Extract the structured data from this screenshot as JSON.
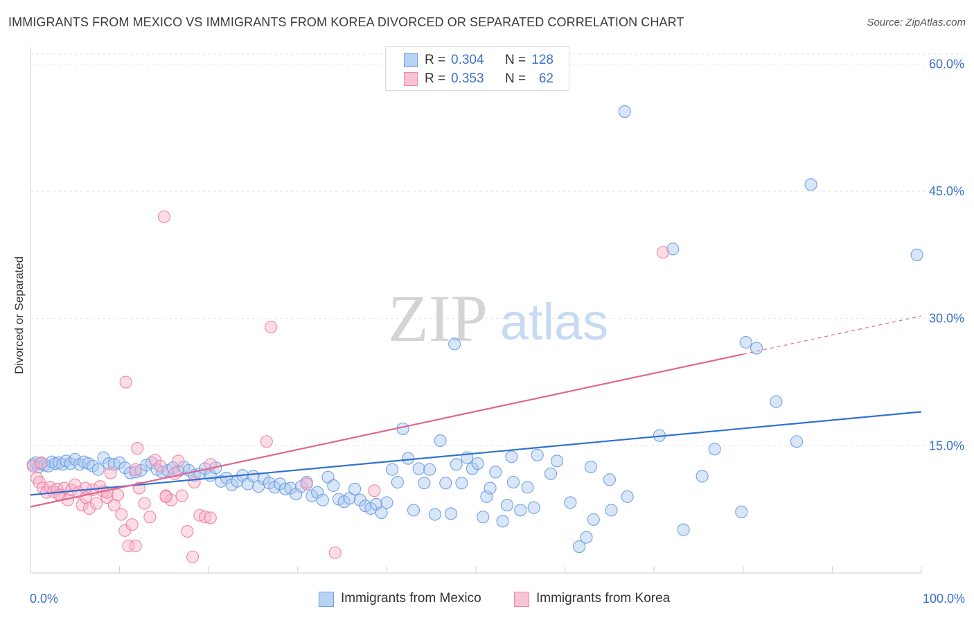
{
  "title": "IMMIGRANTS FROM MEXICO VS IMMIGRANTS FROM KOREA DIVORCED OR SEPARATED CORRELATION CHART",
  "source": "Source: ZipAtlas.com",
  "watermark": {
    "zip": "ZIP",
    "atlas": "atlas"
  },
  "legend_top": [
    {
      "r_label": "R =",
      "r_value": "0.304",
      "n_label": "N =",
      "n_value": "128",
      "color": "#6fa1e6"
    },
    {
      "r_label": "R =",
      "r_value": "0.353",
      "n_label": "N =",
      "n_value": "62",
      "color": "#ef86a6"
    }
  ],
  "legend_bottom": [
    {
      "label": "Immigrants from Mexico",
      "color": "#6fa1e6"
    },
    {
      "label": "Immigrants from Korea",
      "color": "#ef86a6"
    }
  ],
  "chart_data": {
    "type": "scatter",
    "ylabel": "Divorced or Separated",
    "xlabel": "",
    "xlim": [
      0,
      100
    ],
    "ylim": [
      0,
      62
    ],
    "x_tick_labels": [
      "0.0%",
      "100.0%"
    ],
    "y_ticks": [
      15,
      30,
      45,
      60
    ],
    "y_tick_labels": [
      "15.0%",
      "30.0%",
      "45.0%",
      "60.0%"
    ],
    "grid": "horizontal dashed",
    "series": [
      {
        "name": "Immigrants from Mexico",
        "color": "#6fa1e6",
        "trend": {
          "x": [
            0,
            100
          ],
          "y": [
            9.2,
            19.0
          ],
          "dashed_from": null
        },
        "points": [
          [
            0.3,
            12.8
          ],
          [
            0.6,
            13.0
          ],
          [
            0.9,
            12.5
          ],
          [
            1.2,
            12.9
          ],
          [
            1.6,
            12.7
          ],
          [
            2.0,
            12.6
          ],
          [
            2.4,
            13.1
          ],
          [
            2.8,
            12.9
          ],
          [
            3.2,
            13.0
          ],
          [
            3.6,
            12.8
          ],
          [
            4.0,
            13.2
          ],
          [
            4.5,
            12.9
          ],
          [
            5.0,
            13.4
          ],
          [
            5.5,
            12.8
          ],
          [
            6.0,
            13.1
          ],
          [
            6.5,
            12.9
          ],
          [
            7.0,
            12.6
          ],
          [
            7.6,
            12.2
          ],
          [
            8.2,
            13.6
          ],
          [
            8.8,
            12.9
          ],
          [
            9.4,
            12.8
          ],
          [
            10.0,
            13.0
          ],
          [
            10.6,
            12.4
          ],
          [
            11.2,
            11.8
          ],
          [
            11.8,
            11.9
          ],
          [
            12.4,
            12.1
          ],
          [
            13.0,
            12.7
          ],
          [
            13.6,
            13.0
          ],
          [
            14.2,
            12.2
          ],
          [
            14.8,
            11.9
          ],
          [
            15.4,
            12.1
          ],
          [
            16.0,
            12.4
          ],
          [
            16.6,
            12.0
          ],
          [
            17.2,
            12.5
          ],
          [
            17.8,
            12.1
          ],
          [
            18.4,
            11.5
          ],
          [
            19.0,
            11.7
          ],
          [
            19.6,
            12.3
          ],
          [
            20.2,
            11.5
          ],
          [
            20.8,
            12.4
          ],
          [
            21.4,
            10.8
          ],
          [
            22.0,
            11.2
          ],
          [
            22.6,
            10.4
          ],
          [
            23.2,
            10.8
          ],
          [
            23.8,
            11.5
          ],
          [
            24.4,
            10.5
          ],
          [
            25.0,
            11.4
          ],
          [
            25.6,
            10.2
          ],
          [
            26.2,
            11.1
          ],
          [
            26.8,
            10.6
          ],
          [
            27.4,
            10.1
          ],
          [
            28.0,
            10.5
          ],
          [
            28.6,
            9.9
          ],
          [
            29.2,
            10.0
          ],
          [
            29.8,
            9.3
          ],
          [
            30.4,
            10.2
          ],
          [
            31.0,
            10.7
          ],
          [
            31.6,
            9.1
          ],
          [
            32.2,
            9.5
          ],
          [
            32.8,
            8.6
          ],
          [
            33.4,
            11.3
          ],
          [
            34.0,
            10.3
          ],
          [
            34.6,
            8.7
          ],
          [
            35.2,
            8.4
          ],
          [
            35.8,
            8.8
          ],
          [
            36.4,
            9.9
          ],
          [
            37.0,
            8.6
          ],
          [
            37.6,
            7.9
          ],
          [
            38.2,
            7.6
          ],
          [
            38.8,
            8.1
          ],
          [
            39.4,
            7.1
          ],
          [
            40.0,
            8.3
          ],
          [
            40.6,
            12.2
          ],
          [
            41.2,
            10.7
          ],
          [
            41.8,
            17.0
          ],
          [
            42.4,
            13.5
          ],
          [
            43.0,
            7.4
          ],
          [
            43.6,
            12.3
          ],
          [
            44.2,
            10.6
          ],
          [
            44.8,
            12.2
          ],
          [
            45.4,
            6.9
          ],
          [
            46.0,
            15.6
          ],
          [
            46.6,
            10.6
          ],
          [
            47.2,
            7.0
          ],
          [
            47.8,
            12.8
          ],
          [
            48.4,
            10.6
          ],
          [
            49.0,
            13.6
          ],
          [
            49.6,
            12.3
          ],
          [
            50.2,
            12.9
          ],
          [
            50.8,
            6.6
          ],
          [
            51.2,
            9.0
          ],
          [
            51.6,
            10.0
          ],
          [
            52.2,
            11.9
          ],
          [
            53.0,
            6.1
          ],
          [
            53.5,
            8.0
          ],
          [
            54.0,
            13.7
          ],
          [
            54.2,
            10.7
          ],
          [
            55.0,
            7.4
          ],
          [
            55.8,
            10.1
          ],
          [
            56.5,
            7.7
          ],
          [
            58.4,
            11.7
          ],
          [
            59.1,
            13.2
          ],
          [
            60.6,
            8.3
          ],
          [
            62.4,
            4.2
          ],
          [
            62.9,
            12.5
          ],
          [
            63.2,
            6.3
          ],
          [
            65.0,
            11.0
          ],
          [
            66.7,
            54.4
          ],
          [
            61.6,
            3.1
          ],
          [
            56.9,
            13.9
          ],
          [
            65.2,
            7.4
          ],
          [
            67.0,
            9.0
          ],
          [
            47.6,
            27.0
          ],
          [
            72.1,
            38.2
          ],
          [
            80.3,
            27.2
          ],
          [
            81.5,
            26.5
          ],
          [
            83.7,
            20.2
          ],
          [
            86.0,
            15.5
          ],
          [
            87.6,
            45.8
          ],
          [
            99.5,
            37.5
          ],
          [
            76.8,
            14.6
          ],
          [
            70.6,
            16.2
          ],
          [
            75.4,
            11.4
          ],
          [
            79.8,
            7.2
          ],
          [
            73.3,
            5.1
          ]
        ]
      },
      {
        "name": "Immigrants from Korea",
        "color": "#ef86a6",
        "trend": {
          "x": [
            0,
            100
          ],
          "y": [
            7.8,
            30.3
          ],
          "dashed_from": 80
        },
        "points": [
          [
            0.3,
            12.6
          ],
          [
            0.7,
            11.2
          ],
          [
            1.0,
            10.7
          ],
          [
            1.4,
            10.0
          ],
          [
            1.8,
            9.5
          ],
          [
            2.2,
            10.1
          ],
          [
            2.6,
            9.6
          ],
          [
            3.0,
            9.9
          ],
          [
            3.4,
            9.2
          ],
          [
            3.8,
            10.0
          ],
          [
            4.2,
            8.6
          ],
          [
            4.6,
            9.8
          ],
          [
            5.0,
            10.4
          ],
          [
            5.4,
            9.5
          ],
          [
            5.8,
            8.0
          ],
          [
            6.2,
            8.9
          ],
          [
            6.6,
            7.6
          ],
          [
            7.0,
            9.8
          ],
          [
            7.4,
            8.2
          ],
          [
            7.8,
            10.2
          ],
          [
            8.2,
            9.6
          ],
          [
            8.6,
            8.9
          ],
          [
            9.0,
            11.8
          ],
          [
            9.4,
            8.0
          ],
          [
            9.8,
            9.2
          ],
          [
            10.2,
            6.9
          ],
          [
            10.6,
            5.0
          ],
          [
            11.0,
            3.2
          ],
          [
            11.4,
            5.7
          ],
          [
            11.8,
            3.2
          ],
          [
            12.2,
            10.0
          ],
          [
            12.8,
            8.2
          ],
          [
            13.4,
            6.6
          ],
          [
            14.0,
            13.3
          ],
          [
            14.6,
            12.6
          ],
          [
            15.2,
            9.1
          ],
          [
            15.8,
            8.6
          ],
          [
            16.2,
            11.7
          ],
          [
            16.6,
            13.2
          ],
          [
            17.0,
            9.1
          ],
          [
            17.6,
            4.9
          ],
          [
            18.2,
            1.9
          ],
          [
            19.0,
            6.8
          ],
          [
            19.6,
            6.6
          ],
          [
            20.2,
            6.5
          ],
          [
            15.0,
            42.0
          ],
          [
            10.7,
            22.5
          ],
          [
            12.0,
            14.7
          ],
          [
            26.5,
            15.5
          ],
          [
            27.0,
            29.0
          ],
          [
            31.0,
            10.5
          ],
          [
            34.2,
            2.4
          ],
          [
            38.6,
            9.7
          ],
          [
            71.0,
            37.8
          ],
          [
            1.2,
            13.0
          ],
          [
            3.2,
            9.2
          ],
          [
            6.2,
            10.0
          ],
          [
            8.6,
            9.5
          ],
          [
            11.8,
            12.2
          ],
          [
            15.2,
            9.0
          ],
          [
            18.4,
            10.7
          ],
          [
            20.2,
            12.8
          ]
        ]
      }
    ]
  }
}
